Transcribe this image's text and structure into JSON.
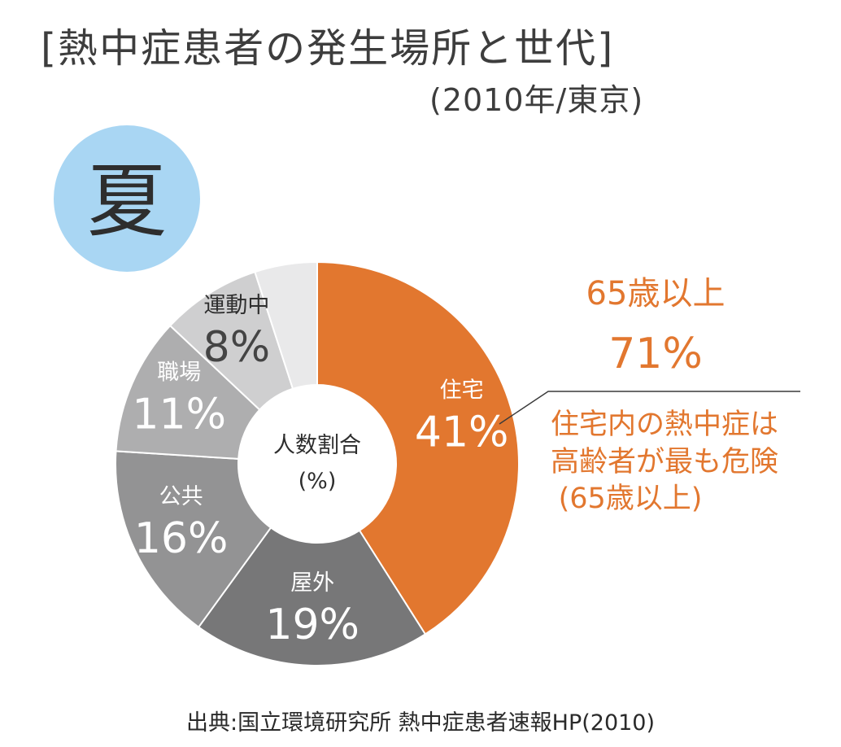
{
  "header": {
    "title": "[熱中症患者の発生場所と世代]",
    "subtitle": "(2010年/東京)"
  },
  "season_label": "夏",
  "colors": {
    "accent_orange": "#e2772f",
    "season_badge": "#a9d6f3"
  },
  "chart_data": {
    "type": "pie",
    "donut": true,
    "center_label": [
      "人数割合",
      "(%)"
    ],
    "slices": [
      {
        "label": "住宅",
        "value": 41,
        "display": "41%",
        "color": "#e2772f"
      },
      {
        "label": "屋外",
        "value": 19,
        "display": "19%",
        "color": "#777778"
      },
      {
        "label": "公共",
        "value": 16,
        "display": "16%",
        "color": "#939394"
      },
      {
        "label": "職場",
        "value": 11,
        "display": "11%",
        "color": "#aeaeaf"
      },
      {
        "label": "運動中",
        "value": 8,
        "display": "8%",
        "color": "#cfcfd0"
      },
      {
        "label": "",
        "value": 5,
        "display": "",
        "color": "#e9e9ea"
      }
    ],
    "annotations": {
      "age_share": [
        "65歳以上",
        "71%"
      ],
      "callout": [
        "住宅内の熱中症は",
        "高齢者が最も危険",
        "(65歳以上)"
      ]
    }
  },
  "source": "出典:国立環境研究所 熱中症患者速報HP(2010)"
}
